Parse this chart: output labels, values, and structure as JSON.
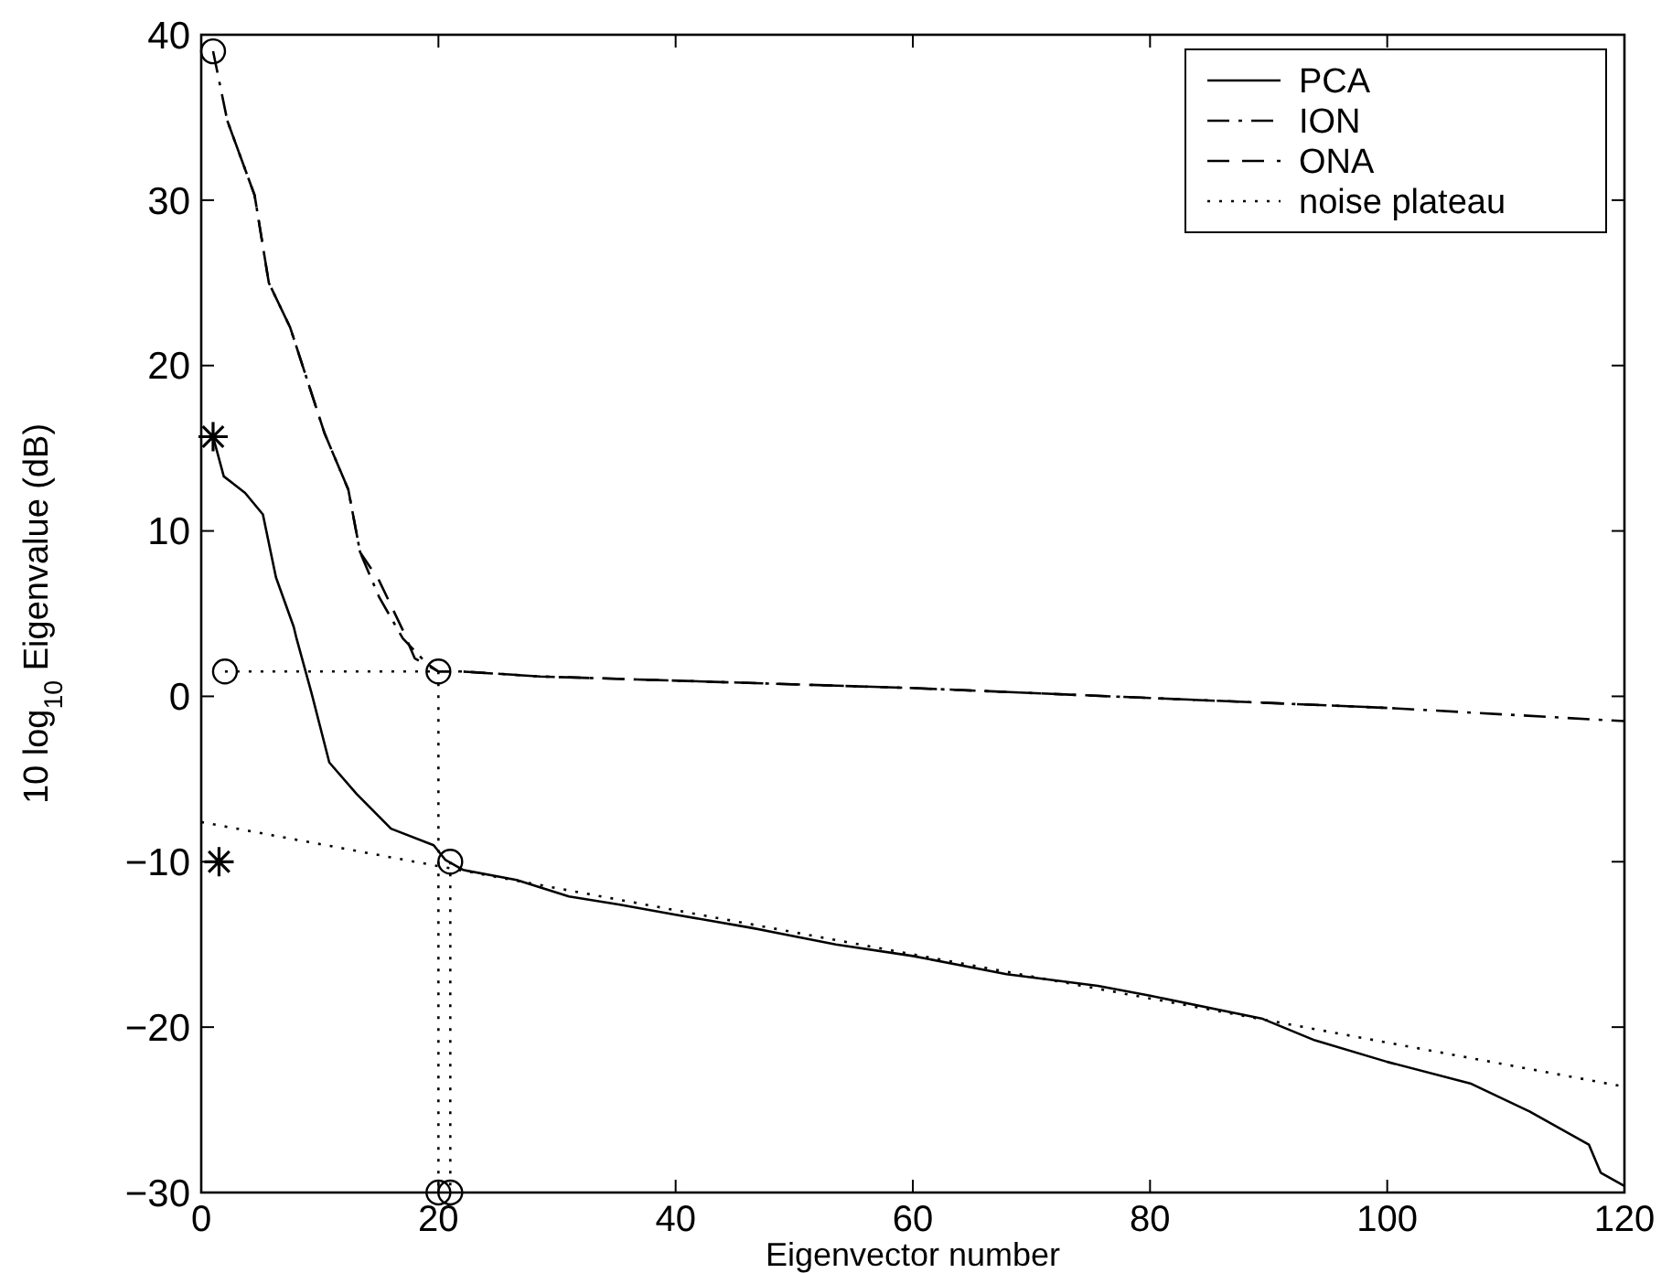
{
  "chart_data": {
    "type": "line",
    "xlabel": "Eigenvector number",
    "ylabel": "10 log$_{10}$ Eigenvalue (dB)",
    "xlim": [
      0,
      120
    ],
    "xticks": [
      0,
      20,
      40,
      60,
      80,
      100,
      120
    ],
    "ylim": [
      -30,
      40
    ],
    "yticks": [
      -30,
      -20,
      -10,
      0,
      10,
      20,
      30,
      40
    ],
    "grid": false,
    "legend": "top right",
    "series": [
      {
        "name": "PCA",
        "color": "#000000",
        "line_style": "solid",
        "marker": "none",
        "x": [
          1,
          1.9,
          3.7,
          5.2,
          6.3,
          7.8,
          8,
          9.3,
          10.8,
          13.1,
          16,
          19.6,
          20.6,
          22.1,
          26.6,
          31,
          35.3,
          40,
          46.4,
          53.5,
          60,
          67.9,
          75.6,
          80,
          89.5,
          93.9,
          100,
          107,
          112,
          117,
          118,
          120
        ],
        "values": [
          15.7,
          13.3,
          12.3,
          11,
          7.2,
          4.2,
          3.6,
          0.2,
          -4,
          -5.9,
          -8,
          -9,
          -9.9,
          -10.5,
          -11.1,
          -12.1,
          -12.6,
          -13.2,
          -14,
          -15,
          -15.7,
          -16.8,
          -17.5,
          -18.1,
          -19.5,
          -20.8,
          -22.1,
          -23.4,
          -25.1,
          -27.1,
          -28.8,
          -29.6
        ]
      },
      {
        "name": "ION",
        "color": "#000000",
        "line_style": "dashdot",
        "marker": "none",
        "x": [
          1,
          2.2,
          4.5,
          5.7,
          7.5,
          10.4,
          12.4,
          13.4,
          15,
          17,
          19,
          20,
          22,
          28.6,
          37.7,
          60,
          80,
          100,
          120
        ],
        "values": [
          39,
          34.8,
          30.3,
          25,
          22.3,
          15.9,
          12.5,
          8.7,
          6,
          3.5,
          2,
          1.5,
          1.5,
          1.2,
          1,
          0.5,
          -0.1,
          -0.7,
          -1.5
        ]
      },
      {
        "name": "ONA",
        "color": "#000000",
        "line_style": "dashed",
        "marker": "none",
        "x": [
          2.2,
          4.5,
          5.7,
          7.5,
          10.4,
          12.4,
          13.4,
          15,
          17,
          18,
          20,
          22,
          28.6,
          37.7,
          60,
          80,
          100
        ],
        "values": [
          34.8,
          30.3,
          25,
          22.3,
          15.9,
          12.5,
          8.7,
          7,
          4,
          2.3,
          1.5,
          1.5,
          1.2,
          1,
          0.5,
          -0.1,
          -0.7
        ]
      },
      {
        "name": "noise plateau",
        "color": "#000000",
        "line_style": "dotted",
        "marker": "none",
        "x": [
          0,
          120
        ],
        "values": [
          -7.6,
          -23.6
        ]
      },
      {
        "color": "#000000",
        "line_style": "dotted",
        "marker": "none",
        "x": [
          2,
          20
        ],
        "values": [
          1.5,
          1.5
        ]
      },
      {
        "color": "#000000",
        "line_style": "dotted",
        "marker": "none",
        "x": [
          20,
          20
        ],
        "values": [
          1.5,
          -30
        ]
      },
      {
        "color": "#000000",
        "line_style": "dotted",
        "marker": "none",
        "x": [
          21,
          21
        ],
        "values": [
          -10,
          -30
        ]
      },
      {
        "type": "scatter",
        "color": "#000000",
        "marker": "circle",
        "x": [
          1,
          2,
          20,
          21,
          20,
          21
        ],
        "values": [
          39,
          1.5,
          1.5,
          -10,
          -30,
          -30
        ]
      },
      {
        "type": "scatter",
        "color": "#000000",
        "marker": "cross",
        "x": [
          1,
          1.5
        ],
        "values": [
          15.7,
          -10
        ]
      }
    ]
  }
}
